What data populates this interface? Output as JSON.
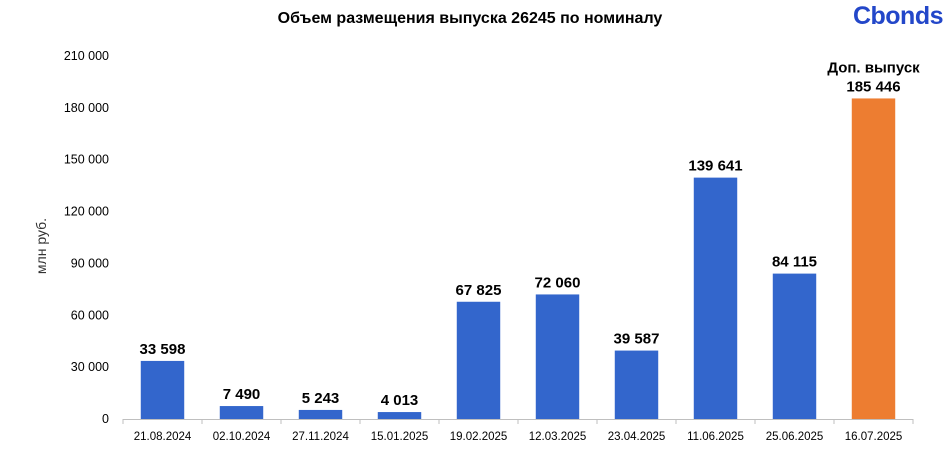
{
  "logo": "Cbonds",
  "chart_data": {
    "type": "bar",
    "title": "Объем размещения выпуска 26245 по номиналу",
    "ylabel": "млн руб.",
    "xlabel": "",
    "ylim": [
      0,
      210000
    ],
    "yticks": [
      0,
      30000,
      60000,
      90000,
      120000,
      150000,
      180000,
      210000
    ],
    "ytick_labels": [
      "0",
      "30 000",
      "60 000",
      "90 000",
      "120 000",
      "150 000",
      "180 000",
      "210 000"
    ],
    "grid": false,
    "legend": "none",
    "categories": [
      "21.08.2024",
      "02.10.2024",
      "27.11.2024",
      "15.01.2025",
      "19.02.2025",
      "12.03.2025",
      "23.04.2025",
      "11.06.2025",
      "25.06.2025",
      "16.07.2025"
    ],
    "values": [
      33598,
      7490,
      5243,
      4013,
      67825,
      72060,
      39587,
      139641,
      84115,
      185446
    ],
    "data_labels": [
      "33 598",
      "7 490",
      "5 243",
      "4 013",
      "67 825",
      "72 060",
      "39 587",
      "139 641",
      "84 115",
      "185 446"
    ],
    "annotations": [
      {
        "category": "16.07.2025",
        "text": "Доп. выпуск"
      }
    ],
    "colors": {
      "default": "#3366cc",
      "highlight": "#ed7d31"
    },
    "highlight_index": 9
  }
}
